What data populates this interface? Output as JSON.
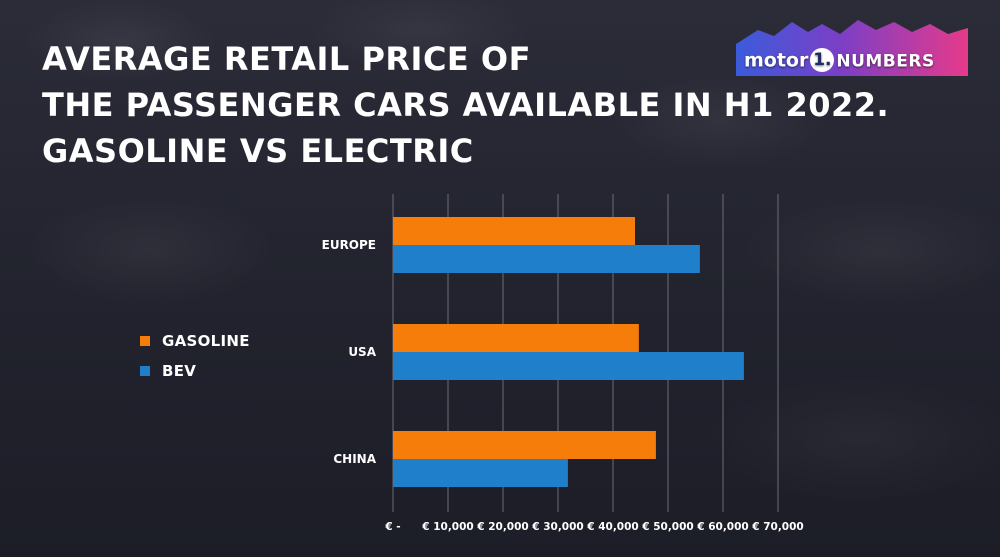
{
  "title_lines": [
    "AVERAGE RETAIL PRICE OF",
    "THE PASSENGER CARS AVAILABLE IN H1 2022.",
    "GASOLINE VS ELECTRIC"
  ],
  "logo": {
    "text_before": "motor",
    "circle_char": "1.",
    "text_after": "NUMBERS"
  },
  "colors": {
    "gasoline": "#f77d0b",
    "bev": "#1f7fcb",
    "grid": "#6b6c76",
    "text": "#ffffff"
  },
  "legend": [
    {
      "label": "GASOLINE",
      "color": "#f77d0b"
    },
    {
      "label": "BEV",
      "color": "#1f7fcb"
    }
  ],
  "chart_data": {
    "type": "bar",
    "orientation": "horizontal",
    "title": "AVERAGE RETAIL PRICE OF THE PASSENGER CARS AVAILABLE IN H1 2022. GASOLINE VS ELECTRIC",
    "categories": [
      "EUROPE",
      "USA",
      "CHINA"
    ],
    "series": [
      {
        "name": "GASOLINE",
        "values": [
          44000,
          44700,
          47800
        ]
      },
      {
        "name": "BEV",
        "values": [
          55800,
          63800,
          31800
        ]
      }
    ],
    "xlim": [
      0,
      70000
    ],
    "xticks": [
      0,
      10000,
      20000,
      30000,
      40000,
      50000,
      60000,
      70000
    ],
    "xtick_labels": [
      "€ -",
      "€ 10,000",
      "€ 20,000",
      "€ 30,000",
      "€ 40,000",
      "€ 50,000",
      "€ 60,000",
      "€ 70,000"
    ],
    "grid": "vertical",
    "legend_position": "left"
  }
}
